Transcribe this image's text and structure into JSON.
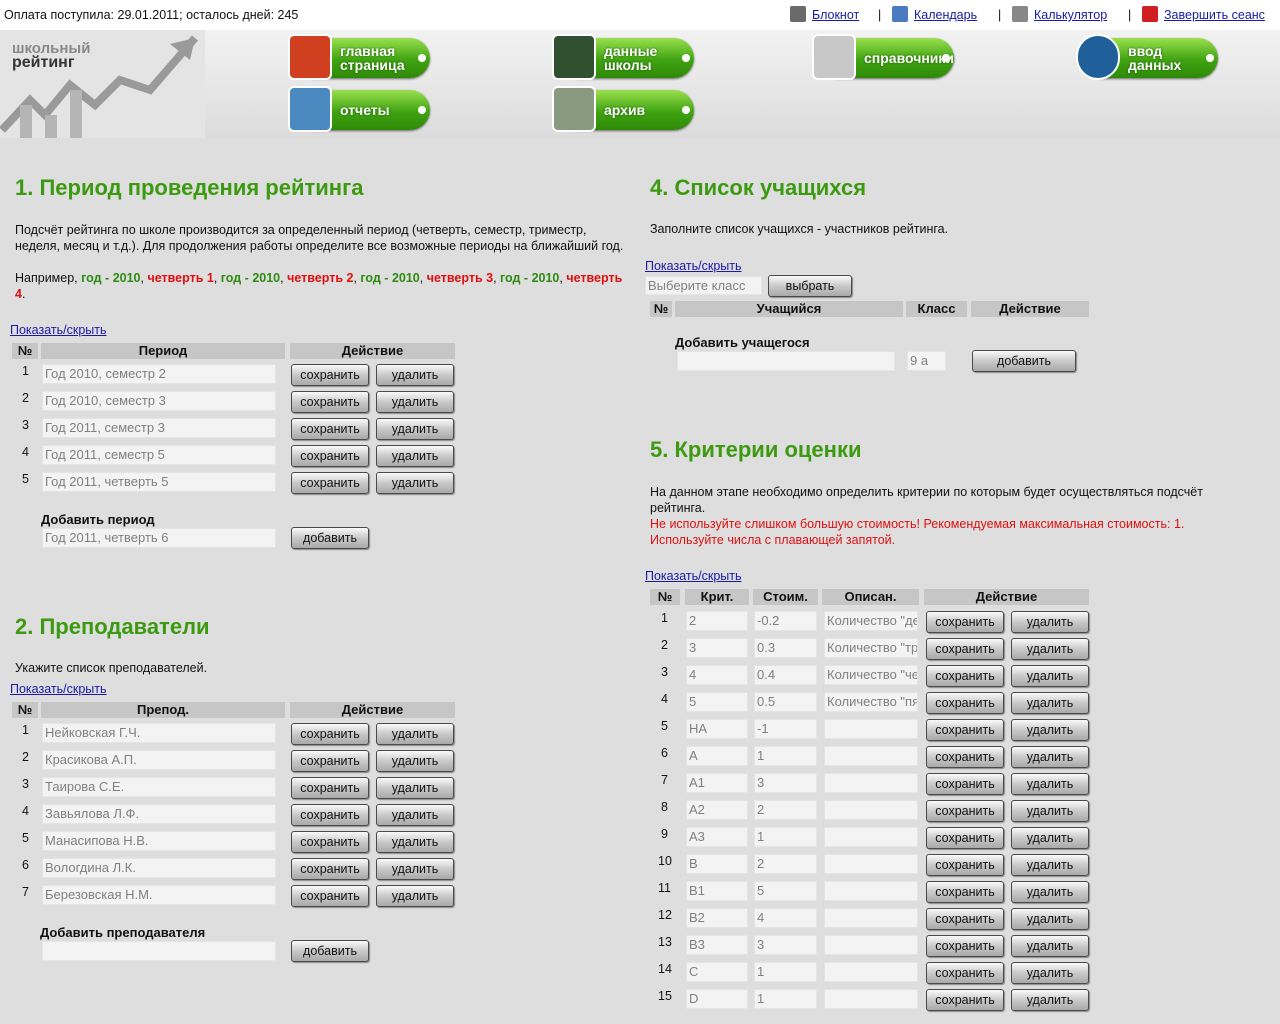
{
  "topbar": {
    "status": "Оплата поступила: 29.01.2011; осталось дней: 245",
    "links": [
      "Блокнот",
      "Календарь",
      "Калькулятор",
      "Завершить сеанс"
    ]
  },
  "logo": {
    "lines": [
      "школьный",
      "рейтинг"
    ]
  },
  "nav": [
    {
      "lines": [
        "главная",
        "страница"
      ]
    },
    {
      "lines": [
        "данные",
        "школы"
      ]
    },
    {
      "lines": [
        "справочники"
      ]
    },
    {
      "lines": [
        "ввод",
        "данных"
      ]
    },
    {
      "lines": [
        "отчеты"
      ]
    },
    {
      "lines": [
        "архив"
      ]
    }
  ],
  "buttons": {
    "save": "сохранить",
    "delete": "удалить",
    "add": "добавить",
    "choose": "выбрать"
  },
  "periods": {
    "title": "1. Период проведения рейтинга",
    "description": "Подсчёт рейтинга по школе производится за определенный период (четверть, семестр, триместр, неделя, месяц и т.д.). Для продолжения работы определите все возможные периоды на ближайший год.",
    "example": [
      {
        "text": "Например, ",
        "tone": "plain"
      },
      {
        "text": "год - 2010",
        "tone": "green"
      },
      {
        "text": ", ",
        "tone": "plain"
      },
      {
        "text": "четверть 1",
        "tone": "red"
      },
      {
        "text": ", ",
        "tone": "plain"
      },
      {
        "text": "год - 2010",
        "tone": "green"
      },
      {
        "text": ", ",
        "tone": "plain"
      },
      {
        "text": "четверть 2",
        "tone": "red"
      },
      {
        "text": ", ",
        "tone": "plain"
      },
      {
        "text": "год - 2010",
        "tone": "green"
      },
      {
        "text": ", ",
        "tone": "plain"
      },
      {
        "text": "четверть 3",
        "tone": "red"
      },
      {
        "text": ", ",
        "tone": "plain"
      },
      {
        "text": "год - 2010",
        "tone": "green"
      },
      {
        "text": ", ",
        "tone": "plain"
      },
      {
        "text": "четверть 4",
        "tone": "red"
      },
      {
        "text": ".",
        "tone": "plain"
      }
    ],
    "toggle": "Показать/скрыть",
    "columns": [
      "№",
      "Период",
      "Действие"
    ],
    "rows": [
      [
        1,
        "Год 2010, семестр 2"
      ],
      [
        2,
        "Год 2010, семестр 3"
      ],
      [
        3,
        "Год 2011, семестр 3"
      ],
      [
        4,
        "Год 2011, семестр 5"
      ],
      [
        5,
        "Год 2011, четверть 5"
      ]
    ],
    "add_label": "Добавить период",
    "add_value": "Год 2011, четверть 6"
  },
  "teachers": {
    "title": "2. Преподаватели",
    "description": "Укажите список преподавателей.",
    "toggle": "Показать/скрыть",
    "columns": [
      "№",
      "Препод.",
      "Действие"
    ],
    "rows": [
      [
        1,
        "Нейковская Г.Ч."
      ],
      [
        2,
        "Красикова А.П."
      ],
      [
        3,
        "Таирова С.Е."
      ],
      [
        4,
        "Завьялова Л.Ф."
      ],
      [
        5,
        "Манасипова Н.В."
      ],
      [
        6,
        "Вологдина Л.К."
      ],
      [
        7,
        "Березовская Н.М."
      ]
    ],
    "add_label": "Добавить преподавателя"
  },
  "students": {
    "title": "4. Список учащихся",
    "description": "Заполните список учащихся - участников рейтинга.",
    "toggle": "Показать/скрыть",
    "class_placeholder": "Выберите класс",
    "columns": [
      "№",
      "Учащийся",
      "Класс",
      "Действие"
    ],
    "add_label": "Добавить учащегося",
    "add_class": "9 а"
  },
  "criteria": {
    "title": "5. Критерии оценки",
    "description": "На данном этапе необходимо определить критерии по которым будет осуществляться подсчёт рейтинга.",
    "warning": "Не используйте слишком большую стоимость! Рекомендуемая максимальная стоимость: 1. Используйте числа с плавающей запятой.",
    "toggle": "Показать/скрыть",
    "columns": [
      "№",
      "Крит.",
      "Стоим.",
      "Описан.",
      "Действие"
    ],
    "rows": [
      [
        1,
        "2",
        -0.2,
        "Количество \"де"
      ],
      [
        2,
        "3",
        0.3,
        "Количество \"тр"
      ],
      [
        3,
        "4",
        0.4,
        "Количество \"че"
      ],
      [
        4,
        "5",
        0.5,
        "Количество \"пя"
      ],
      [
        5,
        "НА",
        -1
      ],
      [
        6,
        "А",
        1
      ],
      [
        7,
        "А1",
        3
      ],
      [
        8,
        "А2",
        2
      ],
      [
        9,
        "А3",
        1
      ],
      [
        10,
        "В",
        2
      ],
      [
        11,
        "В1",
        5
      ],
      [
        12,
        "В2",
        4
      ],
      [
        13,
        "В3",
        3
      ],
      [
        14,
        "С",
        1
      ],
      [
        15,
        "D",
        1
      ]
    ]
  }
}
